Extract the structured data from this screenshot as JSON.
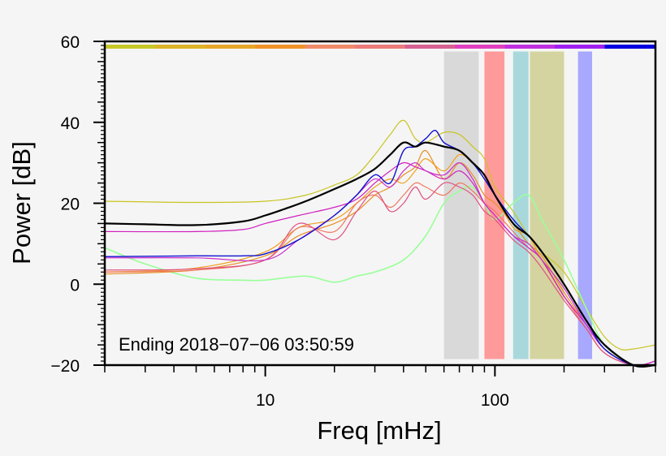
{
  "chart_data": {
    "type": "line",
    "title": "",
    "xlabel": "Freq [mHz]",
    "ylabel": "Power [dB]",
    "xscale": "log",
    "xlim": [
      2,
      500
    ],
    "ylim": [
      -20,
      60
    ],
    "x_tick_labels": [
      {
        "value": 10,
        "label": "10"
      },
      {
        "value": 100,
        "label": "100"
      }
    ],
    "y_ticks": [
      -20,
      0,
      20,
      40,
      60
    ],
    "y_tick_labels": [
      "−20",
      "0",
      "20",
      "40",
      "60"
    ],
    "annotation": "Ending 2018−07−06 03:50:59",
    "top_bar_colors": [
      "#c8c829",
      "#dcb42a",
      "#e6a62a",
      "#f0922a",
      "#f08a6a",
      "#ee7a7a",
      "#d86090",
      "#e040c0",
      "#c030e0",
      "#a020f0",
      "#0000e0"
    ],
    "bands": [
      {
        "from": 60,
        "to": 85,
        "color": "#d9d9d9"
      },
      {
        "from": 90,
        "to": 110,
        "color": "#ff9a9a"
      },
      {
        "from": 120,
        "to": 140,
        "color": "#a9d8dc"
      },
      {
        "from": 142,
        "to": 200,
        "color": "#d4d4a0"
      },
      {
        "from": 230,
        "to": 265,
        "color": "#a8a8ff"
      }
    ],
    "series": [
      {
        "name": "trace-yellow",
        "color": "#c8c420",
        "width": 1.2,
        "x": [
          2,
          5,
          10,
          15,
          20,
          25,
          30,
          35,
          40,
          45,
          50,
          60,
          70,
          80,
          90,
          100,
          120,
          140,
          160,
          200,
          250,
          300,
          350,
          400,
          500
        ],
        "y": [
          20.5,
          20.2,
          20.5,
          22,
          24.5,
          27,
          32,
          37,
          40.5,
          36,
          35,
          37.5,
          37,
          34,
          31,
          24,
          18,
          12,
          8,
          3,
          -6,
          -13,
          -16,
          -16,
          -15
        ]
      },
      {
        "name": "trace-green",
        "color": "#99ff99",
        "width": 1.6,
        "x": [
          2,
          3,
          5,
          8,
          10,
          15,
          20,
          25,
          30,
          40,
          50,
          60,
          70,
          80,
          90,
          100,
          120,
          140,
          160,
          200,
          250,
          300,
          400,
          500
        ],
        "y": [
          9,
          5,
          1.5,
          1,
          1,
          2,
          0.5,
          2,
          3,
          6,
          12,
          20,
          23,
          24,
          20,
          16,
          20,
          22,
          16,
          6,
          -6,
          -15,
          -20,
          -20
        ]
      },
      {
        "name": "trace-orange-1",
        "color": "#f0a020",
        "width": 1.2,
        "x": [
          2,
          5,
          10,
          14,
          20,
          25,
          30,
          35,
          40,
          45,
          50,
          60,
          70,
          80,
          90,
          100,
          120,
          140,
          160,
          200,
          250,
          300,
          400,
          500
        ],
        "y": [
          3,
          4,
          8,
          14,
          16,
          20,
          24,
          26,
          25,
          28,
          31,
          28,
          32,
          30,
          27,
          22,
          14,
          12,
          6,
          -3,
          -10,
          -16,
          -20,
          -20
        ]
      },
      {
        "name": "trace-orange-2",
        "color": "#e89020",
        "width": 1.2,
        "x": [
          2,
          5,
          10,
          14,
          20,
          25,
          30,
          35,
          40,
          45,
          50,
          60,
          70,
          80,
          90,
          100,
          120,
          140,
          160,
          200,
          250,
          300,
          400,
          500
        ],
        "y": [
          2.5,
          3.5,
          7,
          12,
          15,
          18,
          22,
          24,
          27,
          29,
          33,
          26,
          30,
          27,
          22,
          20,
          15,
          10,
          7,
          -2,
          -10,
          -16,
          -20,
          -20
        ]
      },
      {
        "name": "trace-salmon",
        "color": "#f07860",
        "width": 1.2,
        "x": [
          2,
          5,
          10,
          14,
          20,
          25,
          30,
          35,
          40,
          45,
          50,
          60,
          70,
          80,
          90,
          100,
          120,
          140,
          160,
          200,
          250,
          300,
          400,
          500
        ],
        "y": [
          3,
          3.5,
          6,
          14,
          13,
          20,
          22,
          19,
          22,
          25,
          24,
          22,
          25,
          23,
          20,
          18,
          13,
          9,
          6,
          -3,
          -11,
          -17,
          -20,
          -20
        ]
      },
      {
        "name": "trace-pink",
        "color": "#e05080",
        "width": 1.2,
        "x": [
          2,
          5,
          10,
          14,
          20,
          25,
          30,
          35,
          40,
          45,
          50,
          60,
          70,
          80,
          90,
          100,
          120,
          140,
          160,
          200,
          250,
          300,
          400,
          500
        ],
        "y": [
          3.5,
          3.8,
          6,
          15,
          11,
          18,
          23,
          18,
          20,
          24,
          21,
          25,
          24,
          22,
          18,
          16,
          11,
          8,
          4,
          -4,
          -11,
          -17,
          -20,
          -19
        ]
      },
      {
        "name": "trace-magenta-flat",
        "color": "#d020c0",
        "width": 1.2,
        "x": [
          2,
          5,
          8,
          10,
          14,
          20,
          25,
          30,
          35,
          40,
          45,
          50,
          60,
          70,
          80,
          90,
          100,
          120,
          140,
          160,
          200,
          250,
          300,
          400,
          500
        ],
        "y": [
          13,
          13,
          13.5,
          15,
          17,
          19,
          21,
          25,
          28,
          30,
          29,
          28,
          26,
          28,
          25,
          20,
          17,
          12,
          9,
          6,
          -3,
          -10,
          -16,
          -20,
          -19
        ]
      },
      {
        "name": "trace-magenta-2",
        "color": "#cc30cc",
        "width": 1.2,
        "x": [
          2,
          5,
          10,
          14,
          20,
          25,
          30,
          35,
          40,
          45,
          50,
          60,
          70,
          80,
          90,
          100,
          120,
          140,
          160,
          200,
          250,
          300,
          400,
          500
        ],
        "y": [
          6.5,
          6.5,
          6,
          11,
          17,
          22,
          26,
          24,
          28,
          30,
          28,
          27,
          30,
          26,
          20,
          17,
          12,
          10,
          6,
          -1,
          -10,
          -16,
          -20,
          -19
        ]
      },
      {
        "name": "trace-blue",
        "color": "#1010d0",
        "width": 1.4,
        "x": [
          2,
          5,
          8,
          10,
          14,
          20,
          25,
          30,
          35,
          40,
          45,
          50,
          55,
          60,
          70,
          80,
          90,
          100,
          120,
          140,
          160,
          200,
          250,
          300,
          400,
          500
        ],
        "y": [
          6.8,
          7,
          7,
          7.5,
          11,
          17,
          22,
          27,
          25,
          33,
          34,
          36,
          38,
          35,
          33,
          30,
          26,
          22,
          16,
          12,
          8,
          0,
          -9,
          -16,
          -20,
          -20
        ]
      },
      {
        "name": "trace-black-mean",
        "color": "#000000",
        "width": 2.2,
        "x": [
          2,
          3,
          5,
          8,
          10,
          12,
          15,
          20,
          25,
          30,
          35,
          40,
          45,
          50,
          60,
          70,
          80,
          90,
          100,
          120,
          140,
          160,
          200,
          250,
          300,
          400,
          500
        ],
        "y": [
          15,
          14.8,
          14.6,
          15.5,
          17,
          18.5,
          20.5,
          23.5,
          26,
          28.5,
          32,
          35,
          34,
          35,
          34,
          33,
          30,
          27,
          22,
          15,
          12,
          8,
          0,
          -9,
          -15,
          -20,
          -20
        ]
      }
    ]
  }
}
